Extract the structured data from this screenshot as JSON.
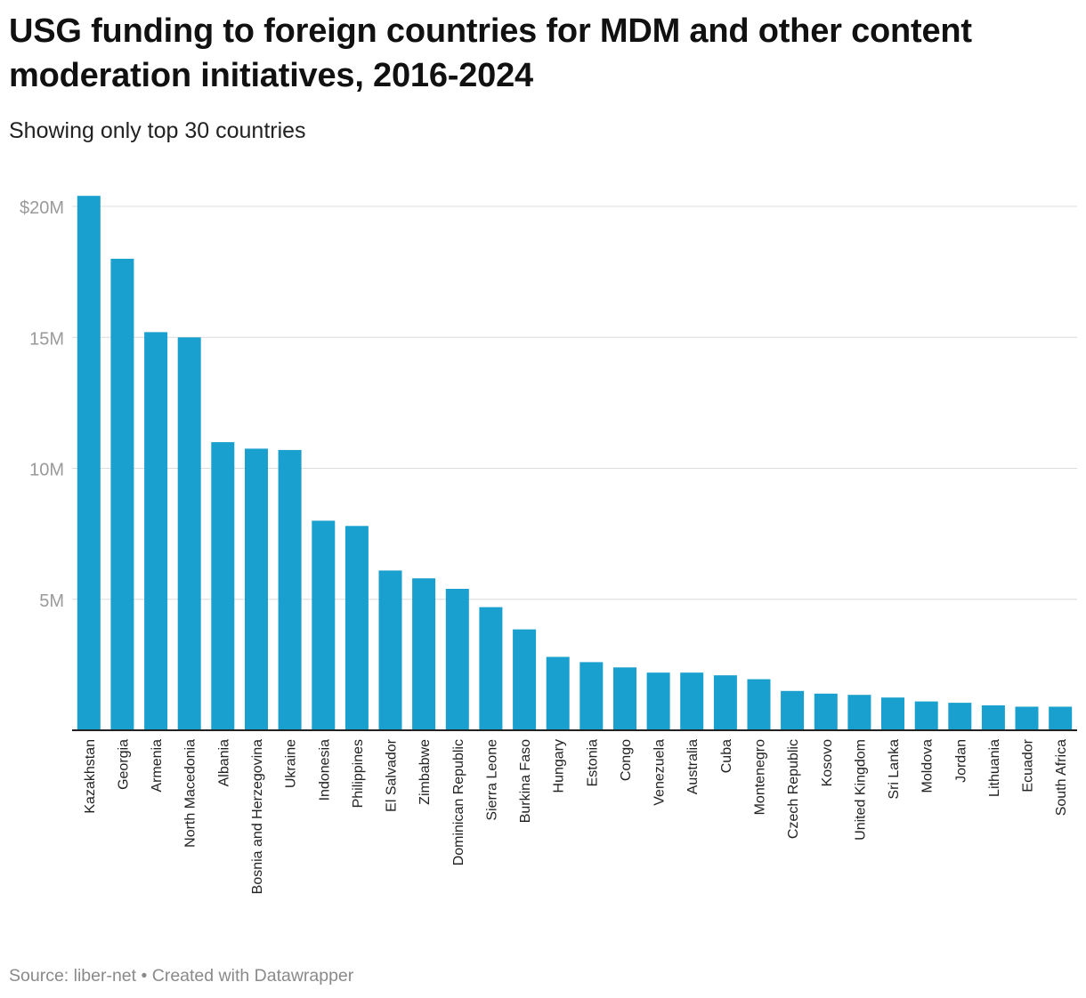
{
  "title": "USG funding to foreign countries for MDM and other content moderation initiatives, 2016-2024",
  "subtitle": "Showing only top 30 countries",
  "footer": {
    "source_label": "Source: liber-net",
    "separator": "•",
    "credit": "Created with Datawrapper"
  },
  "colors": {
    "bar": "#1aa0ce",
    "grid": "#dcdcdc",
    "axis": "#222222",
    "tick_text": "#9a9a9a",
    "category_text": "#222222"
  },
  "chart_data": {
    "type": "bar",
    "title": "USG funding to foreign countries for MDM and other content moderation initiatives, 2016-2024",
    "subtitle": "Showing only top 30 countries",
    "xlabel": "",
    "ylabel": "",
    "ylim": [
      0,
      20
    ],
    "y_unit": "millions USD",
    "grid": true,
    "y_ticks": [
      {
        "value": 20,
        "label": "$20M"
      },
      {
        "value": 15,
        "label": "15M"
      },
      {
        "value": 10,
        "label": "10M"
      },
      {
        "value": 5,
        "label": "5M"
      }
    ],
    "categories": [
      "Kazakhstan",
      "Georgia",
      "Armenia",
      "North Macedonia",
      "Albania",
      "Bosnia and Herzegovina",
      "Ukraine",
      "Indonesia",
      "Philippines",
      "El Salvador",
      "Zimbabwe",
      "Dominican Republic",
      "Sierra Leone",
      "Burkina Faso",
      "Hungary",
      "Estonia",
      "Congo",
      "Venezuela",
      "Australia",
      "Cuba",
      "Montenegro",
      "Czech Republic",
      "Kosovo",
      "United Kingdom",
      "Sri Lanka",
      "Moldova",
      "Jordan",
      "Lithuania",
      "Ecuador",
      "South Africa"
    ],
    "values": [
      20.4,
      18.0,
      15.2,
      15.0,
      11.0,
      10.75,
      10.7,
      8.0,
      7.8,
      6.1,
      5.8,
      5.4,
      4.7,
      3.85,
      2.8,
      2.6,
      2.4,
      2.2,
      2.2,
      2.1,
      1.95,
      1.5,
      1.4,
      1.35,
      1.25,
      1.1,
      1.05,
      0.95,
      0.9,
      0.9
    ]
  }
}
